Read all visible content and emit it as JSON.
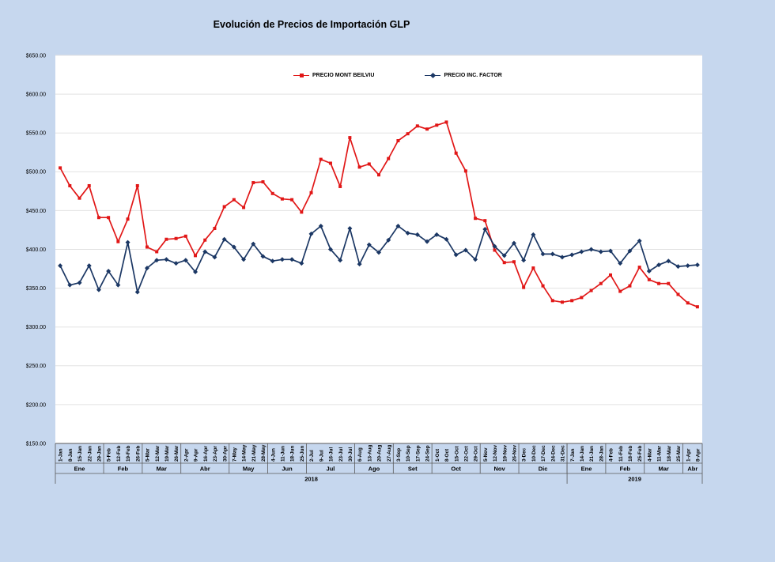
{
  "page": {
    "title": "Evolución de Precios de Importación GLP"
  },
  "colors": {
    "background": "#c6d7ee",
    "plot_background": "#ffffff",
    "gridline": "#e2e2e2",
    "axis_line": "#595959",
    "text": "#000000",
    "series_red": "#e11717",
    "series_navy": "#1b3764"
  },
  "chart_data": {
    "type": "line",
    "title": "Evolución de Precios de Importación GLP",
    "grid": true,
    "legend_position": "top-center-inside",
    "ylim": [
      150,
      650
    ],
    "y_ticks": [
      {
        "value": 650,
        "label": "$650.00"
      },
      {
        "value": 600,
        "label": "$600.00"
      },
      {
        "value": 550,
        "label": "$550.00"
      },
      {
        "value": 500,
        "label": "$500.00"
      },
      {
        "value": 450,
        "label": "$450.00"
      },
      {
        "value": 400,
        "label": "$400.00"
      },
      {
        "value": 350,
        "label": "$350.00"
      },
      {
        "value": 300,
        "label": "$300.00"
      },
      {
        "value": 250,
        "label": "$250.00"
      },
      {
        "value": 200,
        "label": "$200.00"
      },
      {
        "value": 150,
        "label": "$150.00"
      }
    ],
    "categories": [
      "1-Jan",
      "8-Jan",
      "15-Jan",
      "22-Jan",
      "29-Jan",
      "5-Feb",
      "12-Feb",
      "19-Feb",
      "26-Feb",
      "5-Mar",
      "12-Mar",
      "19-Mar",
      "26-Mar",
      "2-Apr",
      "9-Apr",
      "16-Apr",
      "23-Apr",
      "30-Apr",
      "7-May",
      "14-May",
      "21-May",
      "28-May",
      "4-Jun",
      "11-Jun",
      "18-Jun",
      "25-Jun",
      "2-Jul",
      "9-Jul",
      "16-Jul",
      "23-Jul",
      "30-Jul",
      "6-Aug",
      "13-Aug",
      "20-Aug",
      "27-Aug",
      "3-Sep",
      "10-Sep",
      "17-Sep",
      "24-Sep",
      "1-Oct",
      "8-Oct",
      "15-Oct",
      "22-Oct",
      "29-Oct",
      "5-Nov",
      "12-Nov",
      "19-Nov",
      "26-Nov",
      "3-Dec",
      "10-Dec",
      "17-Dec",
      "24-Dec",
      "31-Dec",
      "7-Jan",
      "14-Jan",
      "21-Jan",
      "28-Jan",
      "4-Feb",
      "11-Feb",
      "18-Feb",
      "25-Feb",
      "4-Mar",
      "11-Mar",
      "18-Mar",
      "25-Mar",
      "1-Apr",
      "8-Apr"
    ],
    "month_groups": [
      {
        "label": "Ene",
        "count": 5
      },
      {
        "label": "Feb",
        "count": 4
      },
      {
        "label": "Mar",
        "count": 4
      },
      {
        "label": "Abr",
        "count": 5
      },
      {
        "label": "May",
        "count": 4
      },
      {
        "label": "Jun",
        "count": 4
      },
      {
        "label": "Jul",
        "count": 5
      },
      {
        "label": "Ago",
        "count": 4
      },
      {
        "label": "Set",
        "count": 4
      },
      {
        "label": "Oct",
        "count": 5
      },
      {
        "label": "Nov",
        "count": 4
      },
      {
        "label": "Dic",
        "count": 5
      },
      {
        "label": "Ene",
        "count": 4
      },
      {
        "label": "Feb",
        "count": 4
      },
      {
        "label": "Mar",
        "count": 4
      },
      {
        "label": "Abr",
        "count": 2
      }
    ],
    "year_groups": [
      {
        "label": "2018",
        "count": 53
      },
      {
        "label": "2019",
        "count": 14
      }
    ],
    "series": [
      {
        "name": "PRECIO MONT BEILVIU",
        "color": "#e11717",
        "marker": "square",
        "values": [
          505,
          482,
          466,
          482,
          441,
          441,
          410,
          439,
          482,
          403,
          397,
          413,
          414,
          417,
          392,
          412,
          427,
          455,
          464,
          454,
          486,
          487,
          472,
          465,
          464,
          448,
          473,
          516,
          511,
          481,
          544,
          506,
          510,
          496,
          517,
          540,
          549,
          559,
          555,
          560,
          564,
          524,
          501,
          440,
          437,
          399,
          383,
          384,
          351,
          376,
          353,
          334,
          332,
          334,
          338,
          347,
          356,
          367,
          346,
          353,
          377,
          361,
          356,
          356,
          342,
          331,
          326
        ]
      },
      {
        "name": "PRECIO INC. FACTOR",
        "color": "#1b3764",
        "marker": "diamond",
        "values": [
          379,
          354,
          357,
          379,
          348,
          372,
          354,
          409,
          345,
          376,
          386,
          387,
          382,
          386,
          371,
          397,
          390,
          413,
          403,
          387,
          407,
          391,
          385,
          387,
          387,
          382,
          420,
          430,
          400,
          386,
          427,
          381,
          406,
          396,
          412,
          430,
          421,
          419,
          410,
          419,
          413,
          393,
          399,
          387,
          426,
          404,
          392,
          408,
          386,
          419,
          394,
          394,
          390,
          393,
          397,
          400,
          397,
          398,
          382,
          398,
          411,
          372,
          380,
          385,
          378,
          379,
          380
        ]
      }
    ]
  }
}
